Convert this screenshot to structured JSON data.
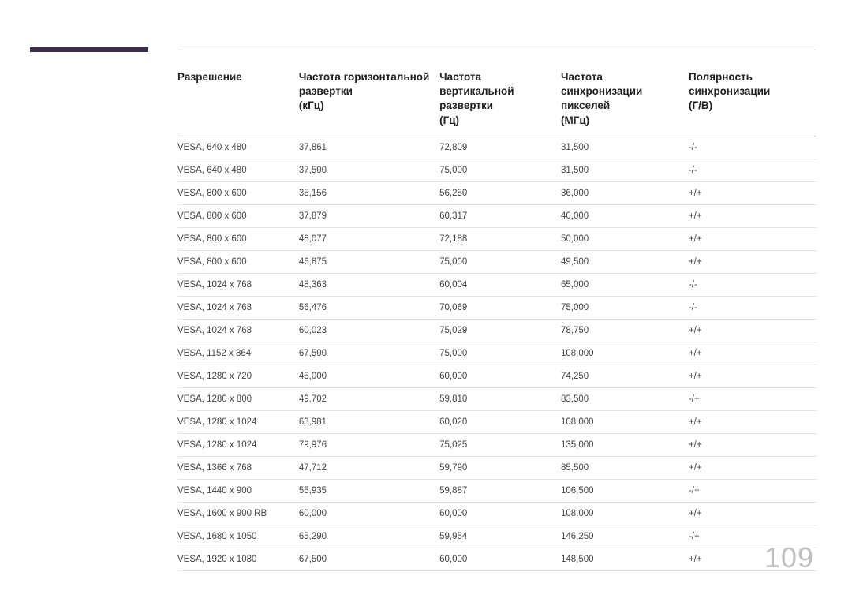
{
  "page_number": "109",
  "accent_bar_color": "#3a2e4a",
  "table": {
    "columns": [
      "Разрешение",
      "Частота горизонтальной развертки\n(кГц)",
      "Частота вертикальной развертки\n(Гц)",
      "Частота синхронизации пикселей\n(МГц)",
      "Полярность синхронизации\n(Г/В)"
    ],
    "rows": [
      [
        "VESA, 640 x 480",
        "37,861",
        "72,809",
        "31,500",
        "-/-"
      ],
      [
        "VESA, 640 x 480",
        "37,500",
        "75,000",
        "31,500",
        "-/-"
      ],
      [
        "VESA, 800 x 600",
        "35,156",
        "56,250",
        "36,000",
        "+/+"
      ],
      [
        "VESA, 800 x 600",
        "37,879",
        "60,317",
        "40,000",
        "+/+"
      ],
      [
        "VESA, 800 x 600",
        "48,077",
        "72,188",
        "50,000",
        "+/+"
      ],
      [
        "VESA, 800 x 600",
        "46,875",
        "75,000",
        "49,500",
        "+/+"
      ],
      [
        "VESA, 1024 x 768",
        "48,363",
        "60,004",
        "65,000",
        "-/-"
      ],
      [
        "VESA, 1024 x 768",
        "56,476",
        "70,069",
        "75,000",
        "-/-"
      ],
      [
        "VESA, 1024 x 768",
        "60,023",
        "75,029",
        "78,750",
        "+/+"
      ],
      [
        "VESA, 1152 x 864",
        "67,500",
        "75,000",
        "108,000",
        "+/+"
      ],
      [
        "VESA, 1280 x 720",
        "45,000",
        "60,000",
        "74,250",
        "+/+"
      ],
      [
        "VESA, 1280 x 800",
        "49,702",
        "59,810",
        "83,500",
        "-/+"
      ],
      [
        "VESA, 1280 x 1024",
        "63,981",
        "60,020",
        "108,000",
        "+/+"
      ],
      [
        "VESA, 1280 x 1024",
        "79,976",
        "75,025",
        "135,000",
        "+/+"
      ],
      [
        "VESA, 1366 x 768",
        "47,712",
        "59,790",
        "85,500",
        "+/+"
      ],
      [
        "VESA, 1440 x 900",
        "55,935",
        "59,887",
        "106,500",
        "-/+"
      ],
      [
        "VESA, 1600 x 900 RB",
        "60,000",
        "60,000",
        "108,000",
        "+/+"
      ],
      [
        "VESA, 1680 x 1050",
        "65,290",
        "59,954",
        "146,250",
        "-/+"
      ],
      [
        "VESA, 1920 x 1080",
        "67,500",
        "60,000",
        "148,500",
        "+/+"
      ]
    ]
  }
}
